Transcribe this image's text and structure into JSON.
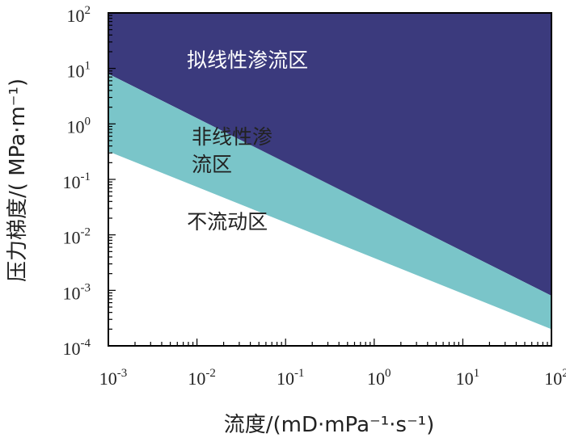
{
  "chart_data": {
    "type": "area",
    "xscale": "log",
    "yscale": "log",
    "xlim": [
      0.001,
      100
    ],
    "ylim": [
      0.0001,
      100
    ],
    "xlabel": "流度/(mD·mPa⁻¹·s⁻¹)",
    "ylabel": "压力梯度/( MPa·m⁻¹)",
    "x_ticks": [
      {
        "value": 0.001,
        "base": "10",
        "exp": "-3"
      },
      {
        "value": 0.01,
        "base": "10",
        "exp": "-2"
      },
      {
        "value": 0.1,
        "base": "10",
        "exp": "-1"
      },
      {
        "value": 1,
        "base": "10",
        "exp": "0"
      },
      {
        "value": 10,
        "base": "10",
        "exp": "1"
      },
      {
        "value": 100,
        "base": "10",
        "exp": "2"
      }
    ],
    "y_ticks": [
      {
        "value": 0.0001,
        "base": "10",
        "exp": "-4"
      },
      {
        "value": 0.001,
        "base": "10",
        "exp": "-3"
      },
      {
        "value": 0.01,
        "base": "10",
        "exp": "-2"
      },
      {
        "value": 0.1,
        "base": "10",
        "exp": "-1"
      },
      {
        "value": 1,
        "base": "10",
        "exp": "0"
      },
      {
        "value": 10,
        "base": "10",
        "exp": "1"
      },
      {
        "value": 100,
        "base": "10",
        "exp": "2"
      }
    ],
    "boundaries": [
      {
        "name": "upper",
        "x": [
          0.001,
          100
        ],
        "y": [
          8,
          0.0008
        ]
      },
      {
        "name": "lower",
        "x": [
          0.001,
          100
        ],
        "y": [
          0.32,
          0.0002
        ]
      }
    ],
    "regions": [
      {
        "name": "拟线性渗流区",
        "lines": [
          "拟线性渗流区"
        ],
        "color": "#3b3a7d",
        "text_color": "#ffffff",
        "label_at": [
          0.0077,
          10.5
        ]
      },
      {
        "name": "非线性渗流区",
        "lines": [
          "非线性渗",
          "流区"
        ],
        "color": "#7ac5c9",
        "text_color": "#222222",
        "label_at": [
          0.0087,
          0.44
        ]
      },
      {
        "name": "不流动区",
        "lines": [
          "不流动区"
        ],
        "color": "#ffffff",
        "text_color": "#222222",
        "label_at": [
          0.0077,
          0.013
        ]
      }
    ]
  }
}
